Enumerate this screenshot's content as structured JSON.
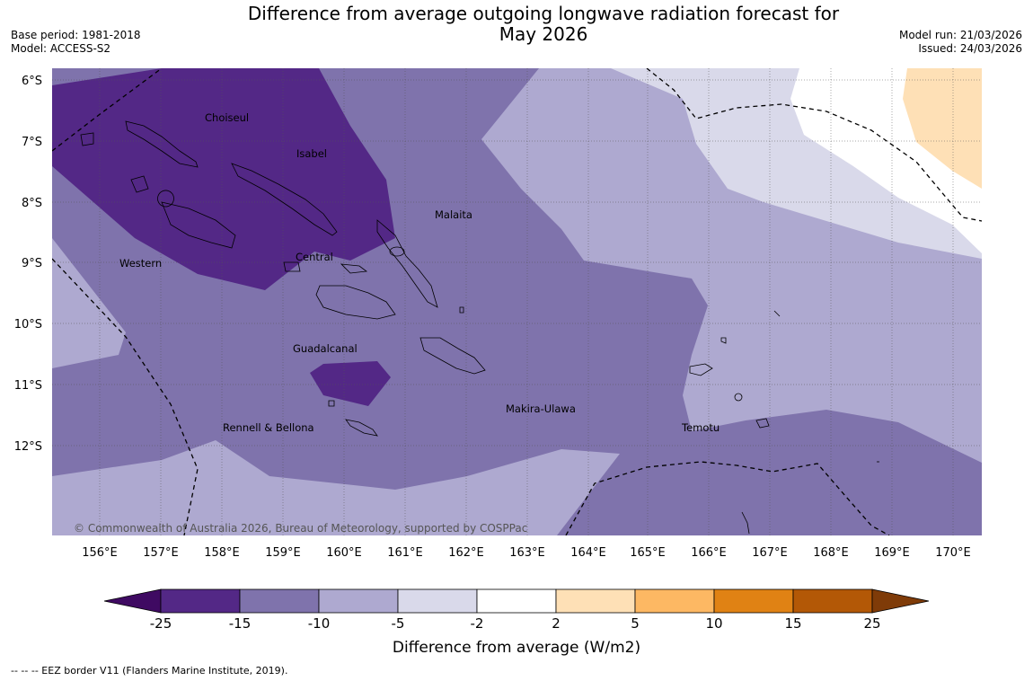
{
  "title_line1": "Difference from average outgoing longwave radiation forecast for",
  "title_line2": "May 2026",
  "meta_left": [
    "Base period: 1981-2018",
    "Model: ACCESS-S2"
  ],
  "meta_right": [
    "Model run: 21/03/2026",
    "Issued: 24/03/2026"
  ],
  "lat_labels": [
    "6°S",
    "7°S",
    "8°S",
    "9°S",
    "10°S",
    "11°S",
    "12°S"
  ],
  "lon_labels": [
    "156°E",
    "157°E",
    "158°E",
    "159°E",
    "160°E",
    "161°E",
    "162°E",
    "163°E",
    "164°E",
    "165°E",
    "166°E",
    "167°E",
    "168°E",
    "169°E",
    "170°E"
  ],
  "regions": [
    "Choiseul",
    "Isabel",
    "Malaita",
    "Western",
    "Central",
    "Guadalcanal",
    "Makira-Ulawa",
    "Rennell & Bellona",
    "Temotu"
  ],
  "copyright": "© Commonwealth of Australia 2026, Bureau of Meteorology, supported by COSPPac",
  "colorbar": {
    "ticks": [
      "-25",
      "-15",
      "-10",
      "-5",
      "-2",
      "2",
      "5",
      "10",
      "15",
      "25"
    ],
    "colors": [
      "#3f0a62",
      "#532886",
      "#7f73ac",
      "#aea9d0",
      "#d9d9ea",
      "#ffffff",
      "#fee0b6",
      "#fdb863",
      "#e08214",
      "#b35806",
      "#7f3b08"
    ],
    "label": "Difference from average (W/m2)"
  },
  "footnote": "--  --  -- EEZ border V11 (Flanders Marine Institute, 2019)."
}
